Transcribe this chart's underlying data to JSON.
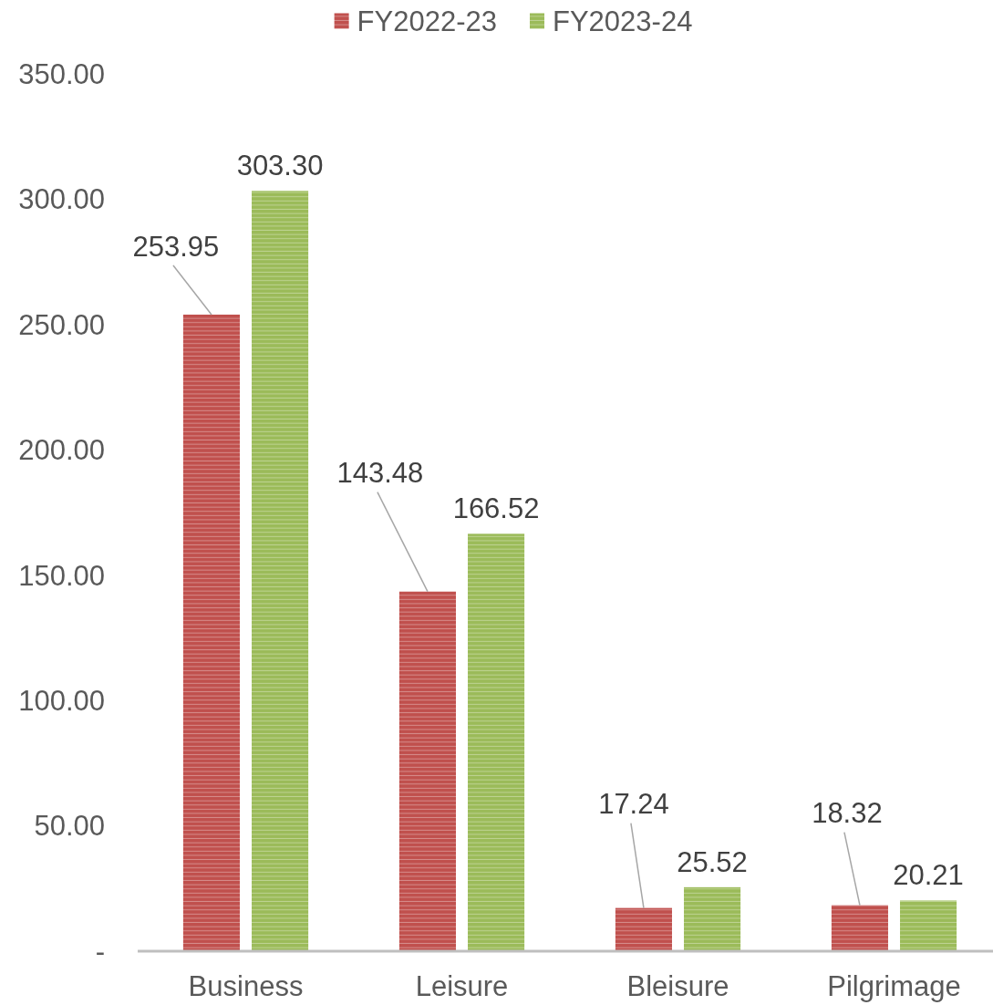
{
  "chart_data": {
    "type": "bar",
    "categories": [
      "Business",
      "Leisure",
      "Bleisure",
      "Pilgrimage"
    ],
    "series": [
      {
        "name": "FY2022-23",
        "color": "#c0504d",
        "values": [
          253.95,
          143.48,
          17.24,
          18.32
        ],
        "value_labels": [
          "253.95",
          "143.48",
          "17.24",
          "18.32"
        ]
      },
      {
        "name": "FY2023-24",
        "color": "#9bbb59",
        "values": [
          303.3,
          166.52,
          25.52,
          20.21
        ],
        "value_labels": [
          "303.30",
          "166.52",
          "25.52",
          "20.21"
        ]
      }
    ],
    "ylim": [
      0,
      350
    ],
    "yticks": [
      {
        "value": 0,
        "label": "-"
      },
      {
        "value": 50,
        "label": "50.00"
      },
      {
        "value": 100,
        "label": "100.00"
      },
      {
        "value": 150,
        "label": "150.00"
      },
      {
        "value": 200,
        "label": "200.00"
      },
      {
        "value": 250,
        "label": "250.00"
      },
      {
        "value": 300,
        "label": "300.00"
      },
      {
        "value": 350,
        "label": "350.00"
      }
    ],
    "grid": false,
    "legend": "top"
  }
}
